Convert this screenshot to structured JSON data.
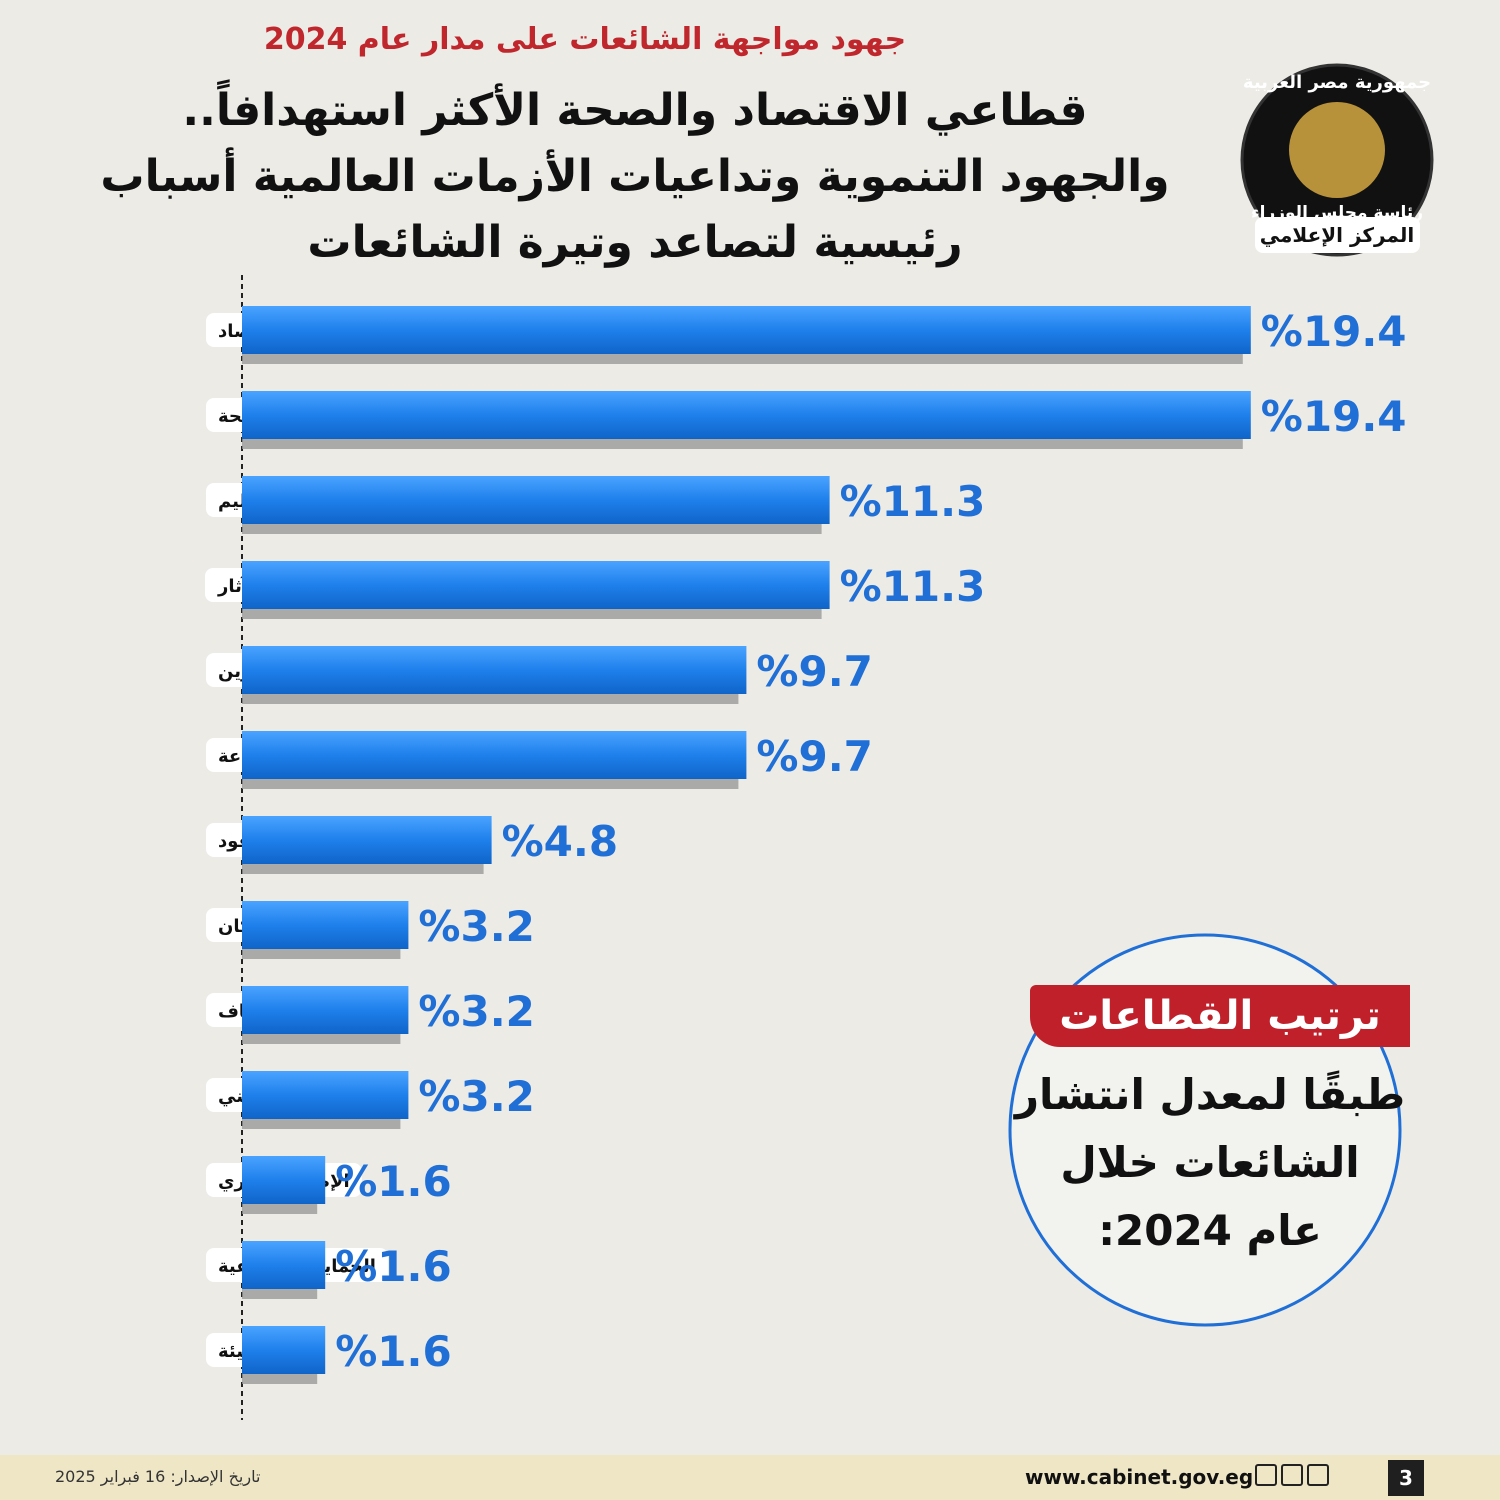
{
  "logo": {
    "top": "جمهورية مصر العربية",
    "middle": "رئاسة مجلس الوزراء",
    "bottom": "المركز الإعلامي"
  },
  "chart_data": {
    "type": "bar",
    "supertitle": "جهود مواجهة الشائعات على مدار عام 2024",
    "title": [
      "قطاعي الاقتصاد والصحة الأكثر استهدافاً..",
      "والجهود التنموية وتداعيات الأزمات العالمية أسباب",
      "رئيسية لتصاعد وتيرة الشائعات"
    ],
    "categories": [
      "الاقتصاد",
      "الصحة",
      "التعليم",
      "السياحة والآثار",
      "التموين",
      "الزراعة",
      "الطاقة والوقود",
      "الإسكان",
      "الأوقاف",
      "الأمني",
      "الإصلاح الإداري",
      "الحماية الاجتماعية",
      "البيئة"
    ],
    "values": [
      19.4,
      19.4,
      11.3,
      11.3,
      9.7,
      9.7,
      4.8,
      3.2,
      3.2,
      3.2,
      1.6,
      1.6,
      1.6
    ],
    "value_labels": [
      "%19.4",
      "%19.4",
      "%11.3",
      "%11.3",
      "%9.7",
      "%9.7",
      "%4.8",
      "%3.2",
      "%3.2",
      "%3.2",
      "%1.6",
      "%1.6",
      "%1.6"
    ],
    "color": "#1f80ec",
    "xlim": [
      0,
      20
    ],
    "annotation": {
      "heading": "ترتيب القطاعات",
      "lines": [
        "طبقًا لمعدل انتشار",
        "الشائعات خلال",
        "عام 2024:"
      ]
    }
  },
  "footer": {
    "website": "www.cabinet.gov.eg",
    "date": "تاريخ الإصدار: 16 فبراير 2025",
    "page": "3"
  }
}
